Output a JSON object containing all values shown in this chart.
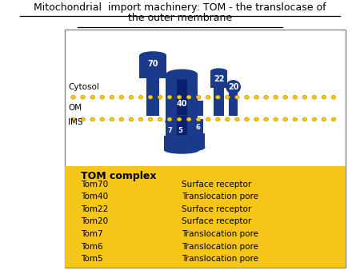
{
  "title_line1": "Mitochondrial  import machinery: TOM - the translocase of",
  "title_line2": "the outer membrane",
  "background_color": "#ffffff",
  "yellow_bg": "#F5C518",
  "blue_color": "#1a3a8c",
  "dark_blue": "#0a1f6e",
  "gold_color": "#F5C518",
  "tom_complex_title": "TOM complex",
  "table_data": [
    [
      "Tom70",
      "Surface receptor"
    ],
    [
      "Tom40",
      "Translocation pore"
    ],
    [
      "Tom22",
      "Surface receptor"
    ],
    [
      "Tom20",
      "Surface receptor"
    ],
    [
      "Tom7",
      "Translocation pore"
    ],
    [
      "Tom6",
      "Translocation pore"
    ],
    [
      "Tom5",
      "Translocation pore"
    ]
  ]
}
